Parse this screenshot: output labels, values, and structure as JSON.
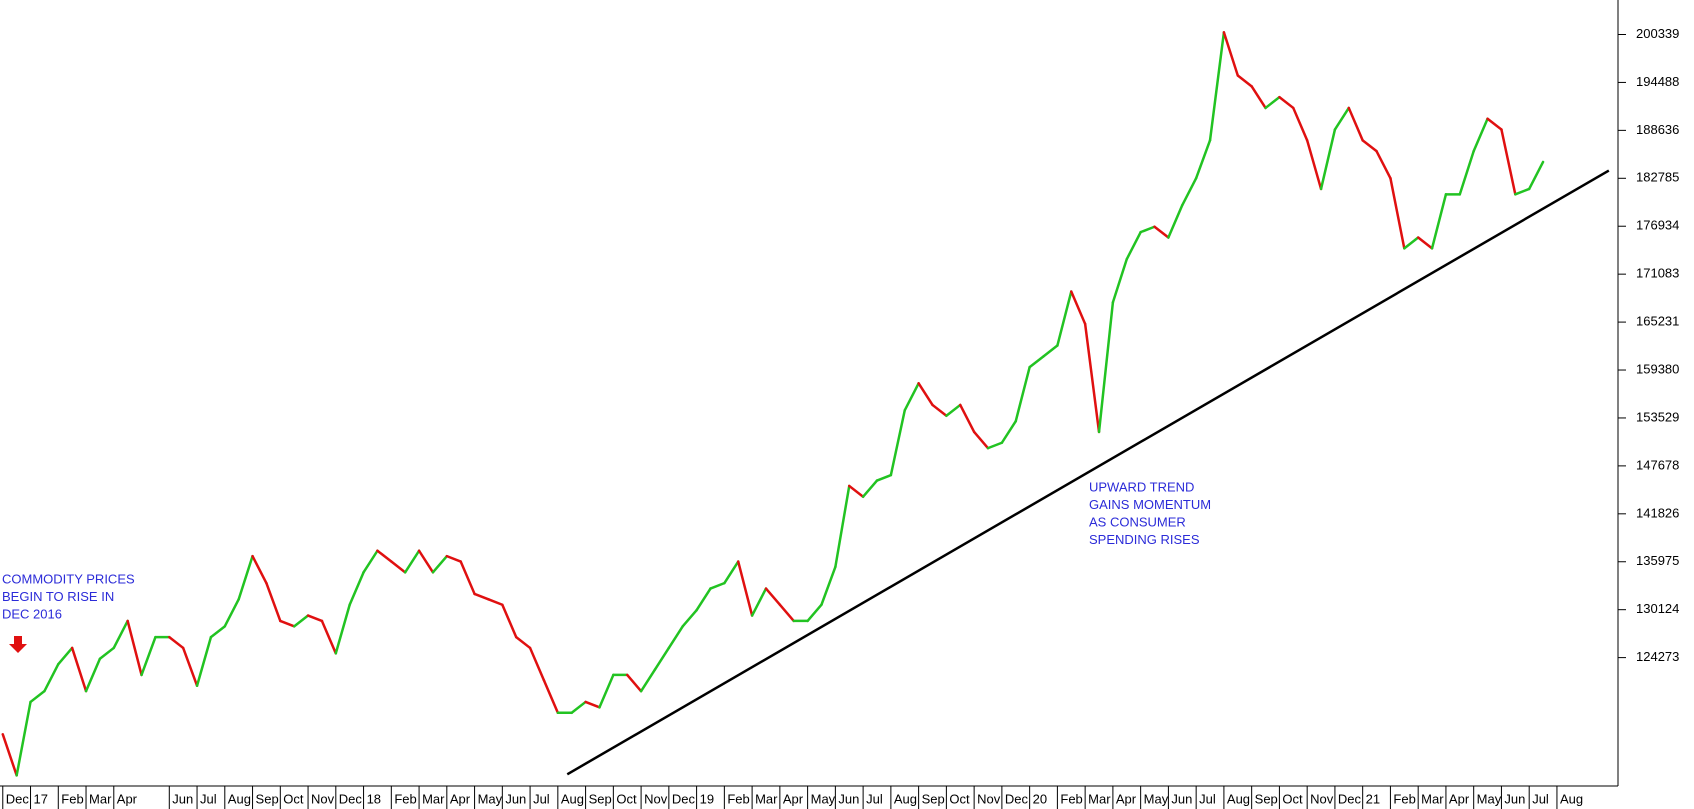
{
  "chart_data": {
    "type": "line",
    "up_color": "#22c322",
    "down_color": "#e01010",
    "x": [
      0,
      0.5,
      1,
      1.5,
      2,
      2.5,
      3,
      3.5,
      4,
      4.5,
      5,
      5.5,
      6,
      6.5,
      7,
      7.5,
      8,
      8.5,
      9,
      9.5,
      10,
      10.5,
      11,
      11.5,
      12,
      12.5,
      13,
      13.5,
      14,
      14.5,
      15,
      15.5,
      16,
      16.5,
      17,
      17.5,
      18,
      18.5,
      19,
      19.5,
      20,
      20.5,
      21,
      21.5,
      22,
      22.5,
      23,
      23.5,
      24,
      24.5,
      25,
      25.5,
      26,
      26.5,
      27,
      27.5,
      28,
      28.5,
      29,
      29.5,
      30,
      30.5,
      31,
      31.5,
      32,
      32.5,
      33,
      33.5,
      34,
      34.5,
      35,
      35.5,
      36,
      36.5,
      37,
      37.5,
      38,
      38.5,
      39,
      39.5,
      40,
      40.5,
      41,
      41.5,
      42,
      42.5,
      43,
      43.5,
      44,
      44.5,
      45,
      45.5,
      46,
      46.5,
      47,
      47.5,
      48,
      48.5,
      49,
      49.5,
      50,
      50.5,
      51,
      51.5,
      52,
      52.5,
      53,
      53.5,
      54,
      54.5,
      55,
      55.5
    ],
    "values": [
      114907,
      109897,
      118862,
      120180,
      123476,
      125454,
      120180,
      124135,
      125454,
      128750,
      122158,
      126772,
      126772,
      125454,
      120839,
      126772,
      128091,
      131387,
      136660,
      133364,
      128750,
      128091,
      129409,
      128750,
      124795,
      130727,
      134683,
      137319,
      136001,
      134683,
      137319,
      134683,
      136660,
      136001,
      132046,
      131387,
      130727,
      126772,
      125454,
      121499,
      117543,
      117543,
      118862,
      118203,
      122158,
      122158,
      120180,
      122817,
      125454,
      128091,
      130068,
      132705,
      133364,
      136001,
      129409,
      132705,
      130727,
      128750,
      128750,
      130727,
      135342,
      145230,
      143911,
      145889,
      146548,
      154459,
      157755,
      155118,
      153799,
      155118,
      151822,
      149844,
      150503,
      153140,
      159732,
      161051,
      162369,
      168961,
      165006,
      151822,
      167643,
      172916,
      176212,
      176871,
      175553,
      179508,
      182804,
      187419,
      200603,
      195329,
      194011,
      191374,
      192692,
      191374,
      187419,
      181486,
      188737,
      191374,
      187419,
      186100,
      182804,
      174235,
      175553,
      174235,
      180827,
      180827,
      186100,
      190055,
      188737,
      180827,
      181486,
      184782
    ],
    "xlim": [
      -0.1,
      58.2
    ],
    "ylim": [
      108600,
      204550
    ],
    "yticks": [
      200339,
      194488,
      188636,
      182785,
      176934,
      171083,
      165231,
      159380,
      153529,
      147678,
      141826,
      135975,
      130124,
      124273
    ],
    "xticks": [
      {
        "value": 0,
        "label": "Dec"
      },
      {
        "value": 1,
        "label": "17"
      },
      {
        "value": 2,
        "label": "Feb"
      },
      {
        "value": 3,
        "label": "Mar"
      },
      {
        "value": 4,
        "label": "Apr"
      },
      {
        "value": 6,
        "label": "Jun"
      },
      {
        "value": 7,
        "label": "Jul"
      },
      {
        "value": 8,
        "label": "Aug"
      },
      {
        "value": 9,
        "label": "Sep"
      },
      {
        "value": 10,
        "label": "Oct"
      },
      {
        "value": 11,
        "label": "Nov"
      },
      {
        "value": 12,
        "label": "Dec"
      },
      {
        "value": 13,
        "label": "18"
      },
      {
        "value": 14,
        "label": "Feb"
      },
      {
        "value": 15,
        "label": "Mar"
      },
      {
        "value": 16,
        "label": "Apr"
      },
      {
        "value": 17,
        "label": "May"
      },
      {
        "value": 18,
        "label": "Jun"
      },
      {
        "value": 19,
        "label": "Jul"
      },
      {
        "value": 20,
        "label": "Aug"
      },
      {
        "value": 21,
        "label": "Sep"
      },
      {
        "value": 22,
        "label": "Oct"
      },
      {
        "value": 23,
        "label": "Nov"
      },
      {
        "value": 24,
        "label": "Dec"
      },
      {
        "value": 25,
        "label": "19"
      },
      {
        "value": 26,
        "label": "Feb"
      },
      {
        "value": 27,
        "label": "Mar"
      },
      {
        "value": 28,
        "label": "Apr"
      },
      {
        "value": 29,
        "label": "May"
      },
      {
        "value": 30,
        "label": "Jun"
      },
      {
        "value": 31,
        "label": "Jul"
      },
      {
        "value": 32,
        "label": "Aug"
      },
      {
        "value": 33,
        "label": "Sep"
      },
      {
        "value": 34,
        "label": "Oct"
      },
      {
        "value": 35,
        "label": "Nov"
      },
      {
        "value": 36,
        "label": "Dec"
      },
      {
        "value": 37,
        "label": "20"
      },
      {
        "value": 38,
        "label": "Feb"
      },
      {
        "value": 39,
        "label": "Mar"
      },
      {
        "value": 40,
        "label": "Apr"
      },
      {
        "value": 41,
        "label": "May"
      },
      {
        "value": 42,
        "label": "Jun"
      },
      {
        "value": 43,
        "label": "Jul"
      },
      {
        "value": 44,
        "label": "Aug"
      },
      {
        "value": 45,
        "label": "Sep"
      },
      {
        "value": 46,
        "label": "Oct"
      },
      {
        "value": 47,
        "label": "Nov"
      },
      {
        "value": 48,
        "label": "Dec"
      },
      {
        "value": 49,
        "label": "21"
      },
      {
        "value": 50,
        "label": "Feb"
      },
      {
        "value": 51,
        "label": "Mar"
      },
      {
        "value": 52,
        "label": "Apr"
      },
      {
        "value": 53,
        "label": "May"
      },
      {
        "value": 54,
        "label": "Jun"
      },
      {
        "value": 55,
        "label": "Jul"
      },
      {
        "value": 56,
        "label": "Aug"
      }
    ],
    "trendline": {
      "color": "#000000",
      "x": [
        20.34,
        57.87
      ],
      "y": [
        110030,
        183730
      ]
    },
    "annotations": [
      {
        "lines": [
          "COMMODITY PRICES",
          "BEGIN TO RISE IN",
          "DEC 2016"
        ]
      },
      {
        "lines": [
          "UPWARD TREND",
          "GAINS MOMENTUM",
          "AS CONSUMER",
          "SPENDING RISES"
        ]
      }
    ]
  }
}
